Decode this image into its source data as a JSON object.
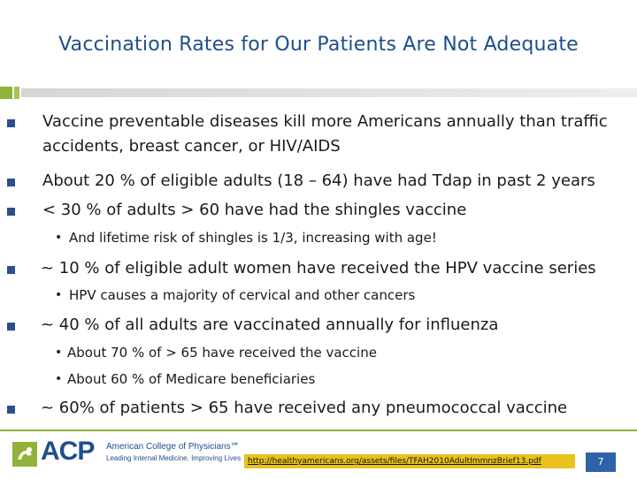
{
  "slide": {
    "title": "Vaccination Rates for Our Patients Are Not Adequate",
    "bullets": [
      {
        "text": "Vaccine preventable diseases kill more Americans annually than traffic",
        "continuation": "accidents, breast cancer, or HIV/AIDS"
      },
      {
        "text": "About 20 % of eligible adults (18 – 64) have had Tdap in past 2 years"
      },
      {
        "text": "< 30 % of adults > 60 have had the shingles vaccine",
        "sub": [
          "And lifetime risk of shingles is 1/3, increasing with age!"
        ]
      },
      {
        "text": "~ 10 % of eligible adult women have received the HPV vaccine series",
        "sub": [
          "HPV causes a majority of cervical and other cancers"
        ]
      },
      {
        "text": "~ 40 % of all adults are vaccinated annually for influenza",
        "sub": [
          "About 70 % of > 65 have received the vaccine",
          "About 60 % of Medicare beneficiaries"
        ]
      },
      {
        "text": "~ 60% of patients > 65 have received any pneumococcal vaccine"
      }
    ]
  },
  "footer": {
    "logo_acp": "ACP",
    "logo_name": "American College of Physicians℠",
    "logo_tagline": "Leading Internal Medicine, Improving Lives",
    "link": "http://healthyamericans.org/assets/files/TFAH2010AdultImmnzBrief13.pdf",
    "page_number": "7"
  },
  "colors": {
    "title": "#1f4e8c",
    "accent_green": "#8fb33a",
    "bullet": "#2b4f8a",
    "page_badge": "#2f62a8",
    "link_highlight": "#e9c21d"
  }
}
